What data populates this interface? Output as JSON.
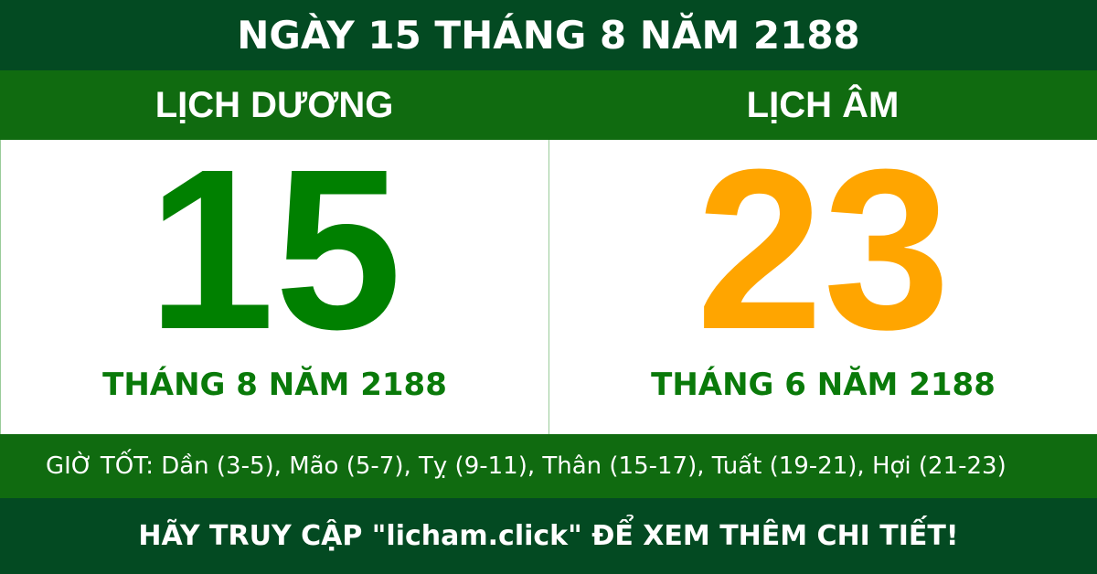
{
  "title": "NGÀY 15 THÁNG 8 NĂM 2188",
  "solar": {
    "heading": "LỊCH DƯƠNG",
    "day": "15",
    "month_year": "THÁNG 8 NĂM 2188",
    "color": "#008000"
  },
  "lunar": {
    "heading": "LỊCH ÂM",
    "day": "23",
    "month_year": "THÁNG 6 NĂM 2188",
    "color": "#FFA500"
  },
  "good_hours": "GIỜ TỐT: Dần (3-5), Mão (5-7), Tỵ (9-11), Thân (15-17), Tuất (19-21), Hợi (21-23)",
  "footer": "HÃY TRUY CẬP \"licham.click\" ĐỂ XEM THÊM CHI TIẾT!",
  "colors": {
    "dark_green": "#034a22",
    "green": "#106b10"
  }
}
